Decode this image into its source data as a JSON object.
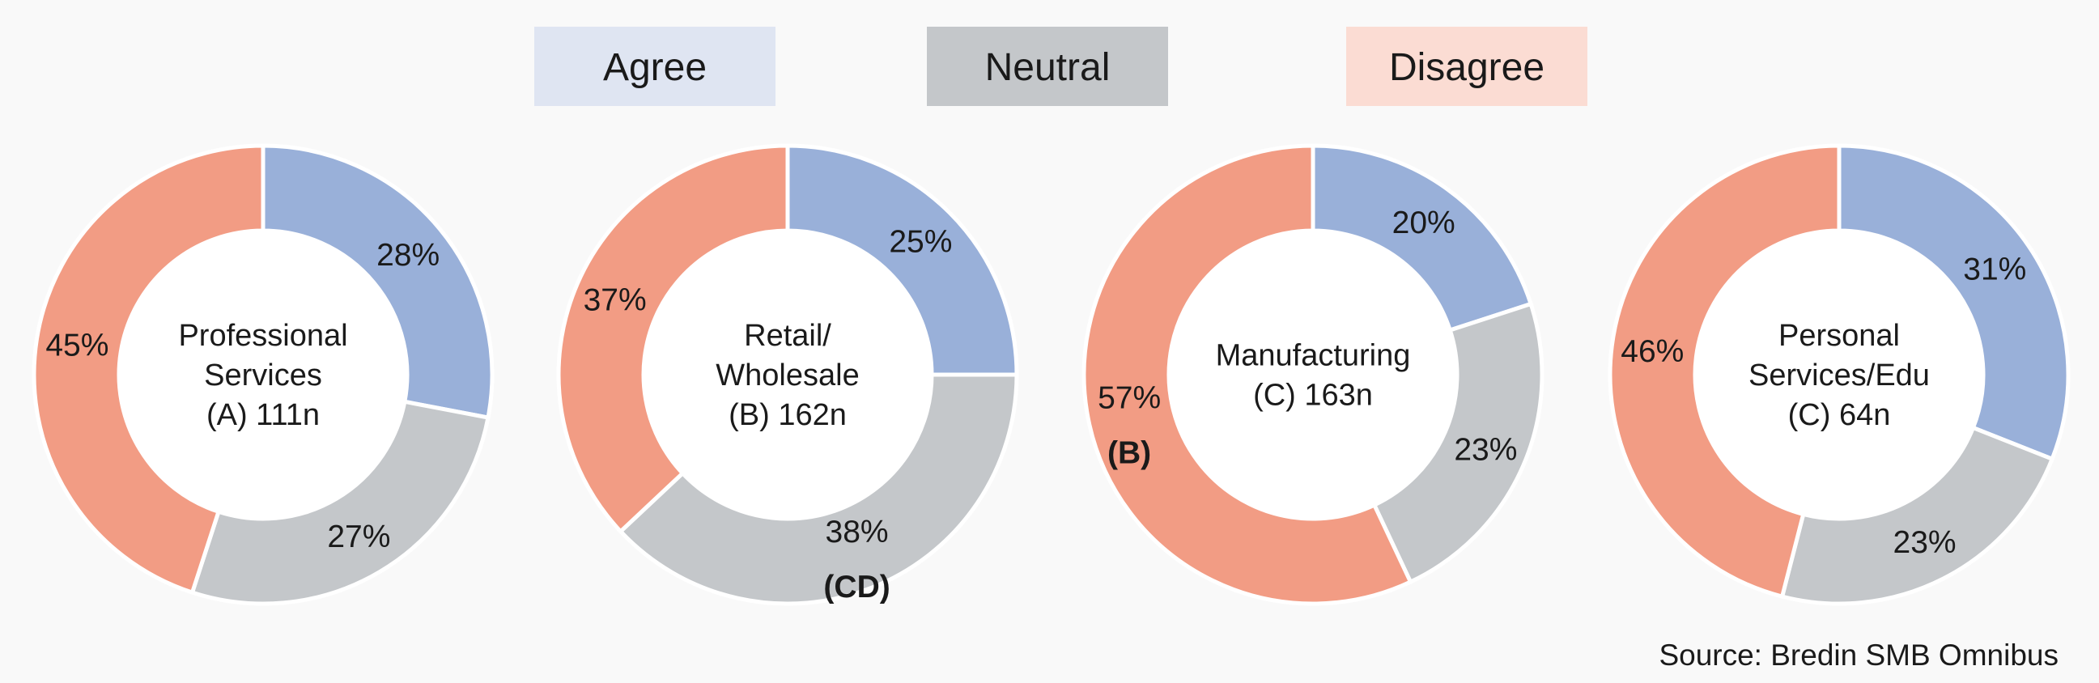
{
  "chart_data": {
    "type": "pie",
    "variant": "donut",
    "legend": {
      "placement": "top-center",
      "entries": [
        {
          "label": "Agree",
          "color": "#dfe5f2"
        },
        {
          "label": "Neutral",
          "color": "#c4c7ca"
        },
        {
          "label": "Disagree",
          "color": "#fbdcd3"
        }
      ]
    },
    "series_colors": {
      "Agree": "#99b0d9",
      "Neutral": "#c4c7ca",
      "Disagree": "#f29c84"
    },
    "charts": [
      {
        "center_label": [
          "Professional",
          "Services",
          "(A) 111n"
        ],
        "slices": [
          {
            "category": "Agree",
            "value": 28,
            "label": "28%",
            "sig": ""
          },
          {
            "category": "Neutral",
            "value": 27,
            "label": "27%",
            "sig": ""
          },
          {
            "category": "Disagree",
            "value": 45,
            "label": "45%",
            "sig": ""
          }
        ]
      },
      {
        "center_label": [
          "Retail/",
          "Wholesale",
          "(B) 162n"
        ],
        "slices": [
          {
            "category": "Agree",
            "value": 25,
            "label": "25%",
            "sig": ""
          },
          {
            "category": "Neutral",
            "value": 38,
            "label": "38%",
            "sig": "(CD)"
          },
          {
            "category": "Disagree",
            "value": 37,
            "label": "37%",
            "sig": ""
          }
        ]
      },
      {
        "center_label": [
          "Manufacturing",
          "(C) 163n"
        ],
        "slices": [
          {
            "category": "Agree",
            "value": 20,
            "label": "20%",
            "sig": ""
          },
          {
            "category": "Neutral",
            "value": 23,
            "label": "23%",
            "sig": ""
          },
          {
            "category": "Disagree",
            "value": 57,
            "label": "57%",
            "sig": "(B)"
          }
        ]
      },
      {
        "center_label": [
          "Personal",
          "Services/Edu",
          "(C) 64n"
        ],
        "slices": [
          {
            "category": "Agree",
            "value": 31,
            "label": "31%",
            "sig": ""
          },
          {
            "category": "Neutral",
            "value": 23,
            "label": "23%",
            "sig": ""
          },
          {
            "category": "Disagree",
            "value": 46,
            "label": "46%",
            "sig": ""
          }
        ]
      }
    ],
    "source": "Source: Bredin SMB Omnibus"
  }
}
